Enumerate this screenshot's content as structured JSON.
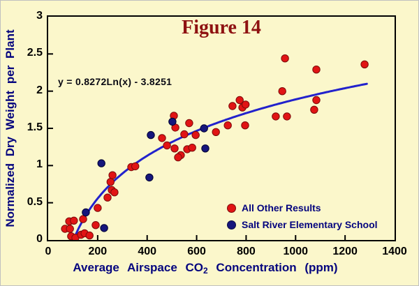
{
  "figure": {
    "title": "Figure 14",
    "equation": "y = 0.8272Ln(x) - 3.8251"
  },
  "axes": {
    "y_title": "Normalized Dry Weight per Plant",
    "x_title_pre": "Average Airspace CO",
    "x_title_sub": "2",
    "x_title_post": " Concentration (ppm)"
  },
  "legend": {
    "items": [
      {
        "label": "All Other Results",
        "color": "#e11414"
      },
      {
        "label": "Salt River Elementary School",
        "color": "#16167c"
      }
    ]
  },
  "colors": {
    "background": "#fbf7cb",
    "title_red": "#8e1111",
    "axis_navy": "#04047e",
    "trend_blue": "#2222cc"
  },
  "chart_data": {
    "type": "scatter",
    "title": "Figure 14",
    "xlabel": "Average Airspace CO2 Concentration (ppm)",
    "ylabel": "Normalized Dry Weight per Plant",
    "xlim": [
      0,
      1400
    ],
    "ylim": [
      0,
      3
    ],
    "xticks": [
      0,
      200,
      400,
      600,
      800,
      1000,
      1200,
      1400
    ],
    "yticks": [
      0,
      0.5,
      1,
      1.5,
      2,
      2.5,
      3
    ],
    "ytick_labels": [
      "0",
      "0.5",
      "1",
      "1.5",
      "2",
      "2.5",
      "3"
    ],
    "grid": false,
    "legend_position": "lower right inside",
    "annotation": "y = 0.8272Ln(x) - 3.8251",
    "trendline": {
      "type": "logarithmic",
      "a": 0.8272,
      "b": -3.8251,
      "x_start": 100,
      "x_end": 1290,
      "color": "#2222cc"
    },
    "series": [
      {
        "name": "All Other Results",
        "color": "#e11414",
        "edge": "#7c0a0a",
        "points": [
          [
            68,
            0.15
          ],
          [
            88,
            0.15
          ],
          [
            85,
            0.25
          ],
          [
            104,
            0.26
          ],
          [
            93,
            0.05
          ],
          [
            110,
            0.03
          ],
          [
            133,
            0.07
          ],
          [
            147,
            0.09
          ],
          [
            167,
            0.06
          ],
          [
            141,
            0.28
          ],
          [
            200,
            0.43
          ],
          [
            192,
            0.2
          ],
          [
            240,
            0.57
          ],
          [
            252,
            0.78
          ],
          [
            257,
            0.67
          ],
          [
            268,
            0.64
          ],
          [
            260,
            0.87
          ],
          [
            336,
            0.98
          ],
          [
            352,
            0.99
          ],
          [
            460,
            1.37
          ],
          [
            480,
            1.27
          ],
          [
            511,
            1.23
          ],
          [
            508,
            1.67
          ],
          [
            514,
            1.51
          ],
          [
            550,
            1.42
          ],
          [
            536,
            1.14
          ],
          [
            525,
            1.11
          ],
          [
            562,
            1.22
          ],
          [
            582,
            1.24
          ],
          [
            570,
            1.57
          ],
          [
            596,
            1.41
          ],
          [
            678,
            1.45
          ],
          [
            726,
            1.54
          ],
          [
            796,
            1.54
          ],
          [
            745,
            1.8
          ],
          [
            785,
            1.78
          ],
          [
            798,
            1.82
          ],
          [
            774,
            1.88
          ],
          [
            920,
            1.66
          ],
          [
            965,
            1.66
          ],
          [
            946,
            2.0
          ],
          [
            957,
            2.44
          ],
          [
            1084,
            2.29
          ],
          [
            1084,
            1.88
          ],
          [
            1075,
            1.75
          ],
          [
            1279,
            2.36
          ]
        ]
      },
      {
        "name": "Salt River Elementary School",
        "color": "#16167c",
        "edge": "#000030",
        "points": [
          [
            152,
            0.37
          ],
          [
            226,
            0.16
          ],
          [
            215,
            1.03
          ],
          [
            409,
            0.84
          ],
          [
            415,
            1.41
          ],
          [
            502,
            1.59
          ],
          [
            630,
            1.5
          ],
          [
            635,
            1.23
          ]
        ]
      }
    ]
  }
}
